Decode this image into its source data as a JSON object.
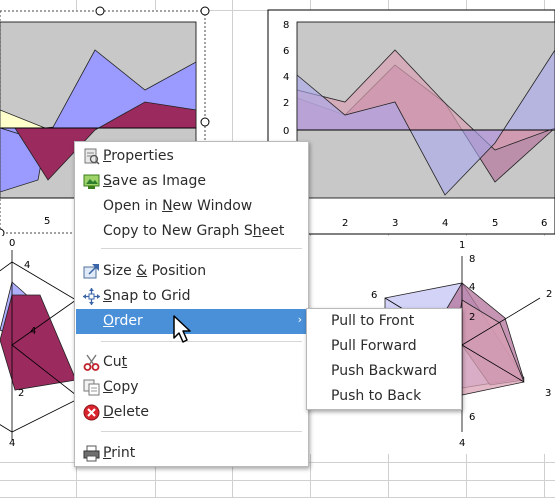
{
  "context_menu": {
    "items": [
      {
        "label": "Properties",
        "mnemonic": "P",
        "icon": "properties-icon"
      },
      {
        "label": "Save as Image",
        "mnemonic": "S",
        "icon": "save-image-icon"
      },
      {
        "label": "Open in New Window",
        "mnemonic": "N",
        "icon": ""
      },
      {
        "label": "Copy to New Graph Sheet",
        "mnemonic": "h",
        "icon": ""
      },
      {
        "label": "Size & Position",
        "mnemonic": "&",
        "icon": "size-position-icon"
      },
      {
        "label": "Snap to Grid",
        "mnemonic": "S",
        "icon": "snap-grid-icon"
      },
      {
        "label": "Order",
        "mnemonic": "O",
        "icon": ""
      },
      {
        "label": "Cut",
        "mnemonic": "t",
        "icon": "scissors-icon"
      },
      {
        "label": "Copy",
        "mnemonic": "C",
        "icon": "copy-icon"
      },
      {
        "label": "Delete",
        "mnemonic": "D",
        "icon": "delete-icon"
      },
      {
        "label": "Print",
        "mnemonic": "P",
        "icon": "printer-icon"
      }
    ],
    "submenu_arrow": "›"
  },
  "order_submenu": {
    "items": [
      "Pull to Front",
      "Pull Forward",
      "Push Backward",
      "Push to Back"
    ]
  },
  "charts": {
    "top_right": {
      "y_ticks": [
        "8",
        "6",
        "4",
        "2",
        "0"
      ],
      "x_ticks": [
        "2",
        "3",
        "4",
        "5",
        "6"
      ]
    },
    "top_left": {
      "x_ticks": [
        "5"
      ]
    },
    "bottom_left_radar": {
      "labels": [
        "0",
        "4",
        "4",
        "2",
        "4"
      ]
    },
    "bottom_right_radar": {
      "labels": [
        "1",
        "8",
        "6",
        "4",
        "2",
        "2",
        "3",
        "6",
        "4"
      ]
    }
  },
  "colors": {
    "series_blue": "#9b9bff",
    "series_maroon": "#9b2b5f",
    "series_yellow": "#ffffcc",
    "plot_bg": "#c8c8c8",
    "highlight": "#4a90d9"
  }
}
